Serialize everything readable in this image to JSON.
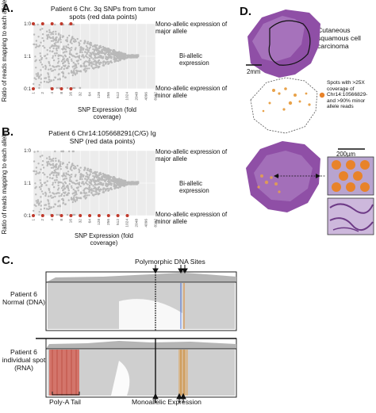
{
  "panelA": {
    "letter": "A.",
    "title": "Patient 6 Chr. 3q SNPs from tumor spots (red data points)",
    "ylabel": "Ratio of reads mapping to each allele",
    "xlabel": "SNP Expression (fold coverage)",
    "ann_top": "Mono-allelic expression of major allele",
    "ann_mid": "Bi-allelic expression",
    "ann_bot": "Mono-allelic expression of minor allele"
  },
  "panelB": {
    "letter": "B.",
    "title": "Patient 6 Chr14:105668291(C/G) Ig SNP (red data points)",
    "ylabel": "Ratio of reads mapping to each allele",
    "xlabel": "SNP Expression (fold coverage)",
    "ann_top": "Mono-allelic expression of major allele",
    "ann_mid": "Bi-allelic expression",
    "ann_bot": "Mono-allelic expression of minor allele"
  },
  "panelC": {
    "letter": "C.",
    "polymorphic": "Polymorphic DNA Sites",
    "normal": "Patient 6 Normal (DNA)",
    "spot": "Patient 6 individual spot (RNA)",
    "polyA": "Poly-A Tail",
    "monoallelic": "Monoallelic Expression"
  },
  "panelD": {
    "letter": "D.",
    "tumor_label": "Cutaneous squamous cell carcinoma",
    "scale_2mm": "2mm",
    "spots_label": "Spots with >25X coverage of Chr14:10566829- and >90% minor allele reads",
    "scale_200": "200µm"
  },
  "chart_data": [
    {
      "type": "scatter",
      "title": "Patient 6 Chr. 3q SNPs from tumor spots (red data points)",
      "xlabel": "SNP Expression (fold coverage)",
      "ylabel": "Ratio of reads mapping to each allele",
      "x_scale": "log2",
      "x_ticks": [
        "1",
        "2",
        "4",
        "8",
        "16",
        "32",
        "64",
        "128",
        "256",
        "512",
        "1024",
        "2048",
        "4096",
        "8192"
      ],
      "y_ticks": [
        "0:1",
        "1:1",
        "1:0"
      ],
      "series": [
        {
          "color": "#c0392b",
          "points": [
            [
              1,
              "1:0"
            ],
            [
              2,
              "1:0"
            ],
            [
              4,
              "1:0"
            ],
            [
              8,
              "1:0"
            ],
            [
              16,
              "1:0"
            ],
            [
              1,
              "0:1"
            ],
            [
              4,
              "0:1"
            ],
            [
              8,
              "0:1"
            ],
            [
              16,
              "0:1"
            ]
          ]
        },
        {
          "color": "#bbbbbb",
          "points": "dense background SNP cloud"
        }
      ]
    },
    {
      "type": "scatter",
      "title": "Patient 6 Chr14:105668291(C/G) Ig SNP (red data points)",
      "xlabel": "SNP Expression (fold coverage)",
      "ylabel": "Ratio of reads mapping to each allele",
      "x_scale": "log2",
      "x_ticks": [
        "1",
        "2",
        "4",
        "8",
        "16",
        "32",
        "64",
        "128",
        "256",
        "512",
        "1024",
        "2048",
        "4096",
        "8192"
      ],
      "y_ticks": [
        "0:1",
        "1:1",
        "1:0"
      ],
      "series": [
        {
          "color": "#c0392b",
          "points": [
            [
              1,
              "0:1"
            ],
            [
              2,
              "0:1"
            ],
            [
              4,
              "0:1"
            ],
            [
              8,
              "0:1"
            ],
            [
              16,
              "0:1"
            ],
            [
              32,
              "0:1"
            ],
            [
              64,
              "0:1"
            ],
            [
              128,
              "0:1"
            ],
            [
              256,
              "0:1"
            ],
            [
              512,
              "0:1"
            ],
            [
              1024,
              "0:1"
            ]
          ]
        },
        {
          "color": "#bbbbbb",
          "points": "dense background SNP cloud"
        }
      ]
    }
  ],
  "tick_values": [
    "1",
    "2",
    "4",
    "8",
    "16",
    "32",
    "64",
    "128",
    "256",
    "512",
    "1024",
    "2048",
    "4096",
    "8192"
  ]
}
